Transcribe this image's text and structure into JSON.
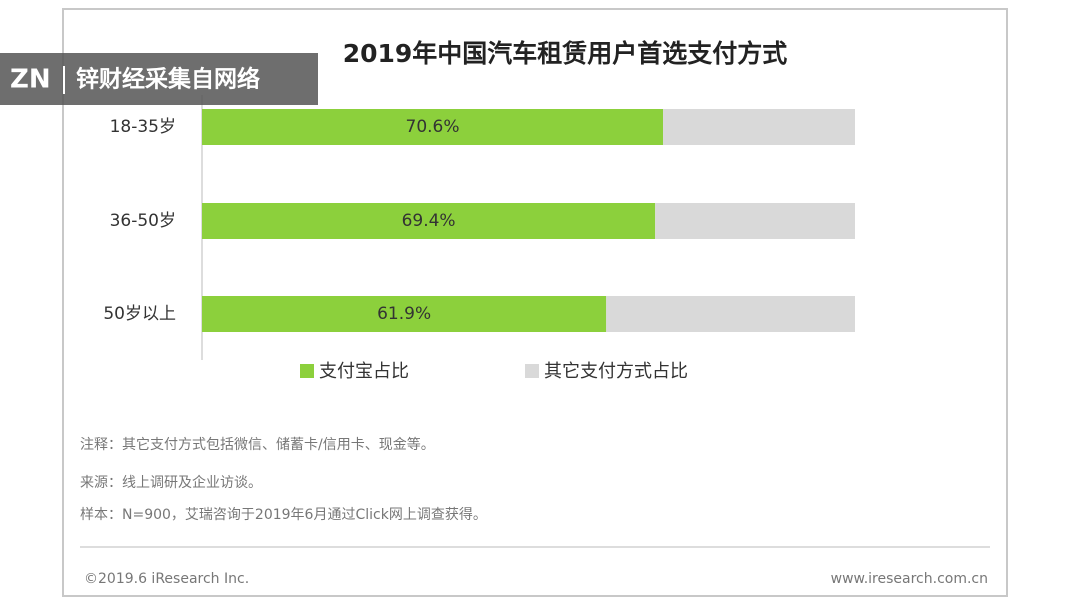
{
  "watermark": {
    "logo": "ZN",
    "text": "锌财经采集自网络"
  },
  "chart_data": {
    "type": "bar",
    "horizontal": true,
    "stacked": true,
    "title": "2019年中国汽车租赁用户首选支付方式",
    "categories": [
      "18-35岁",
      "36-50岁",
      "50岁以上"
    ],
    "series": [
      {
        "name": "支付宝占比",
        "color": "#8cd03c",
        "values": [
          70.6,
          69.4,
          61.9
        ],
        "value_labels": [
          "70.6%",
          "69.4%",
          "61.9%"
        ]
      },
      {
        "name": "其它支付方式占比",
        "color": "#d9d9d9",
        "values": [
          29.4,
          30.6,
          38.1
        ]
      }
    ],
    "xlim": [
      0,
      100
    ]
  },
  "notes": [
    "注释：其它支付方式包括微信、储蓄卡/信用卡、现金等。",
    "来源：线上调研及企业访谈。",
    "样本：N=900，艾瑞咨询于2019年6月通过Click网上调查获得。"
  ],
  "footer": {
    "copyright": "©2019.6 iResearch Inc.",
    "website": "www.iresearch.com.cn"
  }
}
